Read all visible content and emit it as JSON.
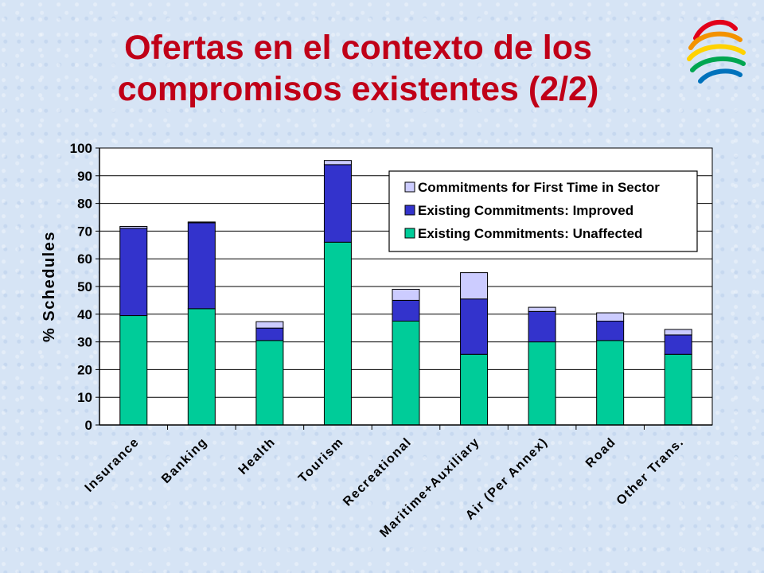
{
  "slide": {
    "title_line1": "Ofertas en el contexto de los",
    "title_line2": "compromisos existentes (2/2)"
  },
  "logo": {
    "icon": "wto-logo-icon"
  },
  "chart_data": {
    "type": "bar",
    "stacked": true,
    "ylabel": "% Schedules",
    "xlabel": "",
    "ylim": [
      0,
      100
    ],
    "yticks": [
      0,
      10,
      20,
      30,
      40,
      50,
      60,
      70,
      80,
      90,
      100
    ],
    "grid": true,
    "legend_position": "top-right",
    "categories": [
      "Insurance",
      "Banking",
      "Health",
      "Tourism",
      "Recreational",
      "Maritime+Auxiliary",
      "Air (Per Annex)",
      "Road",
      "Other Trans."
    ],
    "series": [
      {
        "name": "Existing Commitments: Unaffected",
        "color": "#00cc99",
        "values": [
          39.5,
          42,
          30.5,
          66,
          37.5,
          25.5,
          30,
          30.5,
          25.5
        ]
      },
      {
        "name": "Existing Commitments: Improved",
        "color": "#3333cc",
        "values": [
          31.5,
          31,
          4.5,
          28,
          7.5,
          20,
          11,
          7,
          7
        ]
      },
      {
        "name": "Commitments for First Time in Sector",
        "color": "#ccccff",
        "values": [
          0.7,
          0.3,
          2.3,
          1.5,
          4,
          9.5,
          1.5,
          3,
          2
        ]
      }
    ],
    "legend_order": [
      "Commitments for First Time in Sector",
      "Existing Commitments: Improved",
      "Existing Commitments: Unaffected"
    ]
  }
}
